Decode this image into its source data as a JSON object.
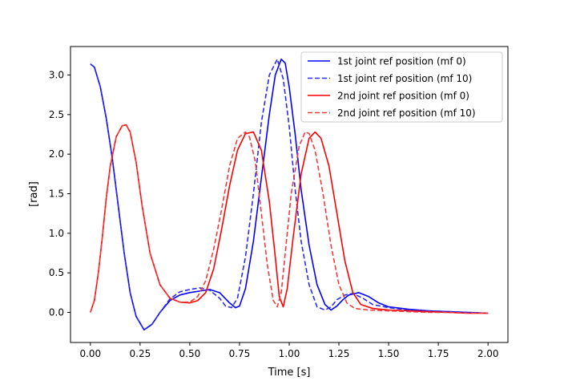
{
  "chart_data": {
    "type": "line",
    "title": "",
    "xlabel": "Time [s]",
    "ylabel": "[rad]",
    "xlim": [
      -0.1,
      2.1
    ],
    "ylim": [
      -0.38,
      3.36
    ],
    "xticks": [
      0.0,
      0.25,
      0.5,
      0.75,
      1.0,
      1.25,
      1.5,
      1.75,
      2.0
    ],
    "xtick_labels": [
      "0.00",
      "0.25",
      "0.50",
      "0.75",
      "1.00",
      "1.25",
      "1.50",
      "1.75",
      "2.00"
    ],
    "yticks": [
      0.0,
      0.5,
      1.0,
      1.5,
      2.0,
      2.5,
      3.0
    ],
    "ytick_labels": [
      "0.0",
      "0.5",
      "1.0",
      "1.5",
      "2.0",
      "2.5",
      "3.0"
    ],
    "grid": false,
    "legend_position": "top-right",
    "series": [
      {
        "name": "1st joint ref position (mf 0)",
        "color": "#0000ff",
        "style": "solid",
        "x": [
          0.0,
          0.02,
          0.05,
          0.08,
          0.11,
          0.14,
          0.17,
          0.2,
          0.23,
          0.27,
          0.31,
          0.35,
          0.4,
          0.45,
          0.5,
          0.55,
          0.6,
          0.65,
          0.7,
          0.73,
          0.75,
          0.78,
          0.82,
          0.86,
          0.9,
          0.93,
          0.96,
          0.98,
          1.0,
          1.03,
          1.06,
          1.1,
          1.14,
          1.18,
          1.21,
          1.24,
          1.27,
          1.3,
          1.35,
          1.4,
          1.45,
          1.5,
          1.6,
          1.7,
          1.8,
          1.9,
          2.0
        ],
        "y": [
          3.14,
          3.1,
          2.85,
          2.45,
          1.95,
          1.35,
          0.75,
          0.25,
          -0.05,
          -0.22,
          -0.15,
          0.0,
          0.15,
          0.22,
          0.25,
          0.27,
          0.29,
          0.25,
          0.12,
          0.06,
          0.08,
          0.3,
          0.9,
          1.7,
          2.5,
          3.0,
          3.2,
          3.15,
          2.85,
          2.25,
          1.55,
          0.85,
          0.35,
          0.1,
          0.03,
          0.08,
          0.16,
          0.22,
          0.25,
          0.2,
          0.12,
          0.07,
          0.04,
          0.02,
          0.01,
          0.0,
          -0.01
        ]
      },
      {
        "name": "1st joint ref position (mf 10)",
        "color": "#2b2bf2",
        "style": "dashed",
        "x": [
          0.0,
          0.02,
          0.05,
          0.08,
          0.11,
          0.14,
          0.17,
          0.2,
          0.23,
          0.27,
          0.31,
          0.35,
          0.4,
          0.45,
          0.5,
          0.55,
          0.6,
          0.65,
          0.68,
          0.71,
          0.74,
          0.78,
          0.82,
          0.86,
          0.9,
          0.94,
          0.97,
          1.0,
          1.03,
          1.06,
          1.1,
          1.14,
          1.18,
          1.21,
          1.24,
          1.28,
          1.32,
          1.37,
          1.42,
          1.5,
          1.6,
          1.7,
          1.8,
          1.9,
          2.0
        ],
        "y": [
          3.14,
          3.1,
          2.85,
          2.45,
          1.95,
          1.35,
          0.75,
          0.25,
          -0.05,
          -0.22,
          -0.15,
          0.0,
          0.17,
          0.26,
          0.29,
          0.31,
          0.28,
          0.18,
          0.08,
          0.06,
          0.18,
          0.7,
          1.5,
          2.4,
          3.0,
          3.2,
          2.95,
          2.35,
          1.55,
          0.9,
          0.35,
          0.07,
          0.03,
          0.07,
          0.16,
          0.22,
          0.24,
          0.18,
          0.1,
          0.06,
          0.03,
          0.02,
          0.01,
          0.0,
          -0.01
        ]
      },
      {
        "name": "2nd joint ref position (mf 0)",
        "color": "#ff0000",
        "style": "solid",
        "x": [
          0.0,
          0.02,
          0.04,
          0.06,
          0.08,
          0.1,
          0.13,
          0.16,
          0.18,
          0.2,
          0.23,
          0.26,
          0.3,
          0.35,
          0.4,
          0.45,
          0.5,
          0.54,
          0.58,
          0.62,
          0.66,
          0.7,
          0.74,
          0.78,
          0.82,
          0.86,
          0.9,
          0.93,
          0.95,
          0.97,
          0.99,
          1.02,
          1.06,
          1.1,
          1.13,
          1.16,
          1.2,
          1.24,
          1.28,
          1.32,
          1.36,
          1.42,
          1.5,
          1.6,
          1.7,
          1.8,
          1.9,
          2.0
        ],
        "y": [
          0.0,
          0.15,
          0.5,
          0.95,
          1.45,
          1.85,
          2.22,
          2.36,
          2.37,
          2.28,
          1.9,
          1.35,
          0.75,
          0.35,
          0.18,
          0.13,
          0.12,
          0.15,
          0.25,
          0.55,
          1.05,
          1.6,
          2.05,
          2.26,
          2.28,
          2.05,
          1.4,
          0.7,
          0.2,
          0.07,
          0.3,
          0.95,
          1.75,
          2.2,
          2.28,
          2.2,
          1.85,
          1.25,
          0.65,
          0.25,
          0.1,
          0.05,
          0.03,
          0.02,
          0.01,
          0.0,
          -0.01,
          -0.01
        ]
      },
      {
        "name": "2nd joint ref position (mf 10)",
        "color": "#f03c3c",
        "style": "dashed",
        "x": [
          0.0,
          0.02,
          0.04,
          0.06,
          0.08,
          0.1,
          0.13,
          0.16,
          0.18,
          0.2,
          0.23,
          0.26,
          0.3,
          0.35,
          0.4,
          0.45,
          0.5,
          0.54,
          0.58,
          0.62,
          0.66,
          0.7,
          0.74,
          0.78,
          0.8,
          0.83,
          0.86,
          0.89,
          0.92,
          0.94,
          0.96,
          0.98,
          1.01,
          1.05,
          1.08,
          1.1,
          1.13,
          1.17,
          1.21,
          1.25,
          1.29,
          1.33,
          1.4,
          1.5,
          1.6,
          1.7,
          1.8,
          1.9,
          2.0
        ],
        "y": [
          0.0,
          0.15,
          0.5,
          0.95,
          1.45,
          1.85,
          2.22,
          2.36,
          2.37,
          2.28,
          1.9,
          1.35,
          0.75,
          0.35,
          0.18,
          0.13,
          0.13,
          0.2,
          0.4,
          0.8,
          1.3,
          1.85,
          2.2,
          2.28,
          2.22,
          1.9,
          1.25,
          0.6,
          0.15,
          0.07,
          0.25,
          0.75,
          1.5,
          2.1,
          2.28,
          2.26,
          2.05,
          1.5,
          0.85,
          0.35,
          0.12,
          0.05,
          0.03,
          0.02,
          0.01,
          0.0,
          0.0,
          -0.01,
          -0.01
        ]
      }
    ]
  }
}
